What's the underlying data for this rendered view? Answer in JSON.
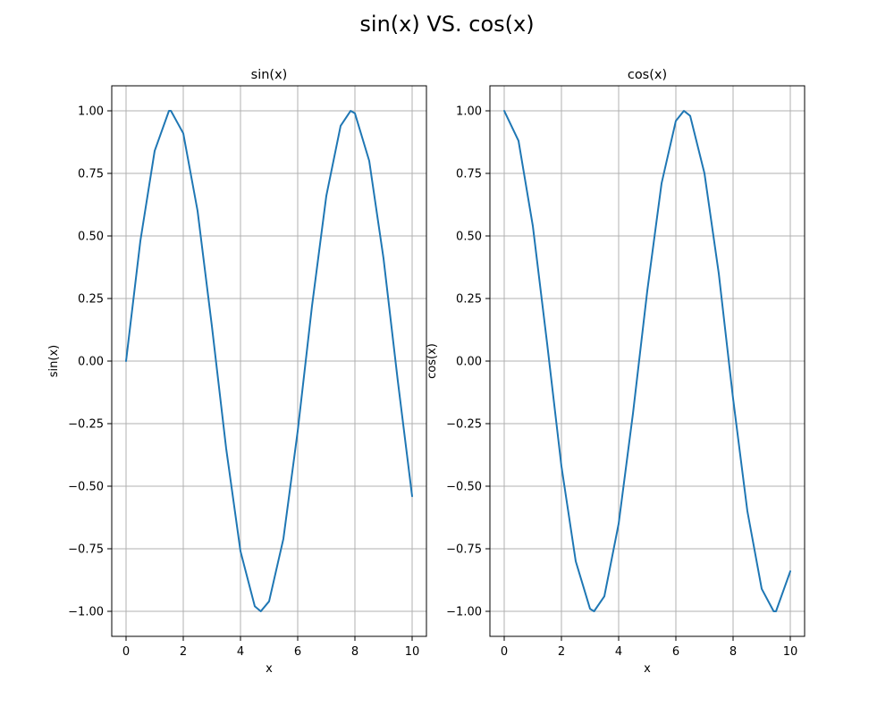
{
  "figure": {
    "suptitle": "sin(x) VS. cos(x)"
  },
  "chart_data": [
    {
      "type": "line",
      "title": "sin(x)",
      "xlabel": "x",
      "ylabel": "sin(x)",
      "xlim": [
        -0.5,
        10.5
      ],
      "ylim": [
        -1.1,
        1.1
      ],
      "xticks": [
        0,
        2,
        4,
        6,
        8,
        10
      ],
      "xtick_labels": [
        "0",
        "2",
        "4",
        "6",
        "8",
        "10"
      ],
      "yticks": [
        -1.0,
        -0.75,
        -0.5,
        -0.25,
        0.0,
        0.25,
        0.5,
        0.75,
        1.0
      ],
      "ytick_labels": [
        "−1.00",
        "−0.75",
        "−0.50",
        "−0.25",
        "0.00",
        "0.25",
        "0.50",
        "0.75",
        "1.00"
      ],
      "grid": true,
      "series": [
        {
          "color": "#1f77b4",
          "x": [
            0,
            0.5,
            1,
            1.5,
            1.57,
            2,
            2.5,
            3,
            3.5,
            4,
            4.5,
            4.71,
            5,
            5.5,
            6,
            6.5,
            7,
            7.5,
            7.85,
            8,
            8.5,
            9,
            9.5,
            10
          ],
          "y": [
            0.0,
            0.48,
            0.84,
            1.0,
            1.0,
            0.91,
            0.6,
            0.14,
            -0.35,
            -0.76,
            -0.98,
            -1.0,
            -0.96,
            -0.71,
            -0.28,
            0.22,
            0.66,
            0.94,
            1.0,
            0.99,
            0.8,
            0.41,
            -0.08,
            -0.54
          ]
        }
      ]
    },
    {
      "type": "line",
      "title": "cos(x)",
      "xlabel": "x",
      "ylabel": "cos(x)",
      "xlim": [
        -0.5,
        10.5
      ],
      "ylim": [
        -1.1,
        1.1
      ],
      "xticks": [
        0,
        2,
        4,
        6,
        8,
        10
      ],
      "xtick_labels": [
        "0",
        "2",
        "4",
        "6",
        "8",
        "10"
      ],
      "yticks": [
        -1.0,
        -0.75,
        -0.5,
        -0.25,
        0.0,
        0.25,
        0.5,
        0.75,
        1.0
      ],
      "ytick_labels": [
        "−1.00",
        "−0.75",
        "−0.50",
        "−0.25",
        "0.00",
        "0.25",
        "0.50",
        "0.75",
        "1.00"
      ],
      "grid": true,
      "series": [
        {
          "color": "#1f77b4",
          "x": [
            0,
            0.5,
            1,
            1.5,
            2,
            2.5,
            3,
            3.14,
            3.5,
            4,
            4.5,
            5,
            5.5,
            6,
            6.28,
            6.5,
            7,
            7.5,
            8,
            8.5,
            9,
            9.42,
            9.5,
            10
          ],
          "y": [
            1.0,
            0.88,
            0.54,
            0.07,
            -0.42,
            -0.8,
            -0.99,
            -1.0,
            -0.94,
            -0.65,
            -0.21,
            0.28,
            0.71,
            0.96,
            1.0,
            0.98,
            0.75,
            0.35,
            -0.15,
            -0.6,
            -0.91,
            -1.0,
            -1.0,
            -0.84
          ]
        }
      ]
    }
  ]
}
